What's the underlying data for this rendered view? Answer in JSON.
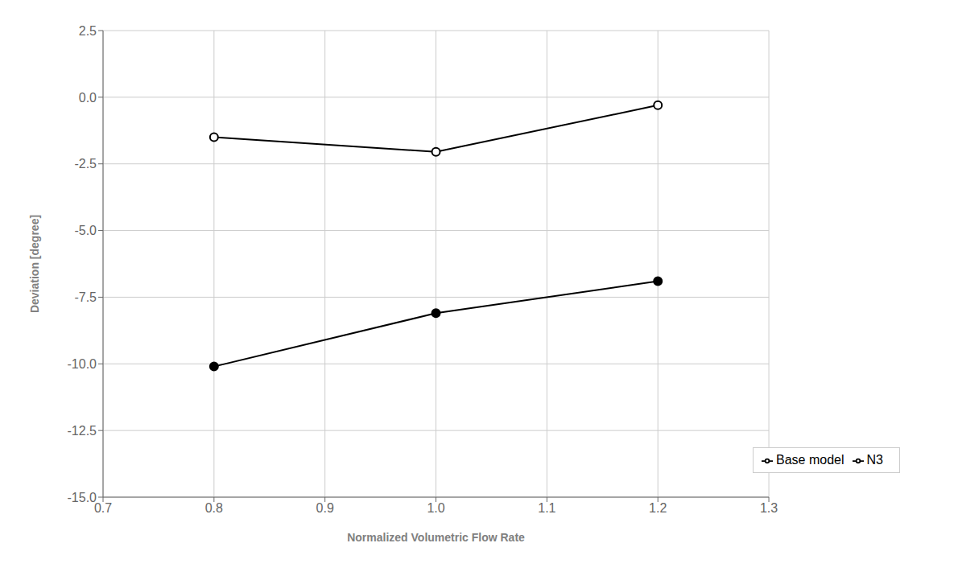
{
  "chart_data": {
    "type": "line",
    "x": [
      0.8,
      1.0,
      1.2
    ],
    "series": [
      {
        "name": "Base model",
        "color": "#000000",
        "marker": "circle",
        "values": [
          -10.1,
          -8.1,
          -6.9
        ]
      },
      {
        "name": "N3",
        "color": "#000000",
        "marker": "open_circle",
        "values": [
          -1.5,
          -2.05,
          -0.3
        ]
      }
    ],
    "xlabel": "Normalized Volumetric Flow Rate",
    "ylabel": "Deviation [degree]",
    "xlim": [
      0.7,
      1.3
    ],
    "ylim": [
      -15.0,
      2.5
    ],
    "xticks": [
      0.7,
      0.8,
      0.9,
      {
        "value": 1,
        "label": "1.0"
      },
      1.1,
      1.2,
      1.3
    ],
    "yticks": [
      {
        "value": -15,
        "label": "-15.0"
      },
      -12.5,
      {
        "value": -10,
        "label": "-10.0"
      },
      -7.5,
      {
        "value": -5,
        "label": "-5.0"
      },
      -2.5,
      {
        "value": 0,
        "label": "0.0"
      },
      2.5
    ],
    "grid": true,
    "legend": "lower right"
  }
}
